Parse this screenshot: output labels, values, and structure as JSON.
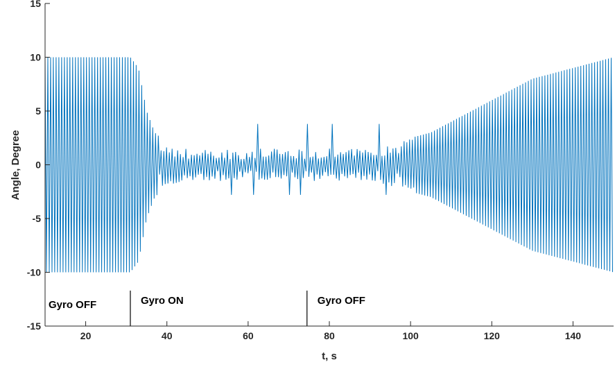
{
  "chart_data": {
    "type": "line",
    "title": "",
    "xlabel": "t, s",
    "ylabel": "Angle, Degree",
    "xlim": [
      10,
      150
    ],
    "ylim": [
      -15,
      15
    ],
    "xticks": [
      20,
      40,
      60,
      80,
      100,
      120,
      140
    ],
    "yticks": [
      15,
      10,
      5,
      0,
      -5,
      -10,
      -15
    ],
    "grid": false,
    "legend": "none",
    "line_color": "#0072bd",
    "series": [
      {
        "x": [
          10,
          20,
          30,
          31,
          33,
          35,
          37,
          40,
          45,
          50,
          55,
          60,
          65,
          70,
          75,
          80,
          85,
          90,
          95,
          100,
          105,
          110,
          115,
          120,
          125,
          130,
          135,
          140,
          145,
          150
        ],
        "amplitude": [
          10,
          10,
          10,
          10,
          9,
          5,
          3,
          2,
          1.5,
          1.5,
          1.5,
          1.5,
          1.5,
          1.5,
          1.5,
          1.5,
          1.5,
          1.5,
          2,
          2.5,
          3,
          4,
          5,
          6,
          7,
          8,
          8.5,
          9,
          9.5,
          10
        ]
      }
    ],
    "events": [
      {
        "x": 31,
        "label": "Gyro ON"
      },
      {
        "x": 74.5,
        "label": "Gyro OFF"
      }
    ],
    "annotations": [
      {
        "x": 10,
        "label": "Gyro OFF"
      }
    ]
  }
}
